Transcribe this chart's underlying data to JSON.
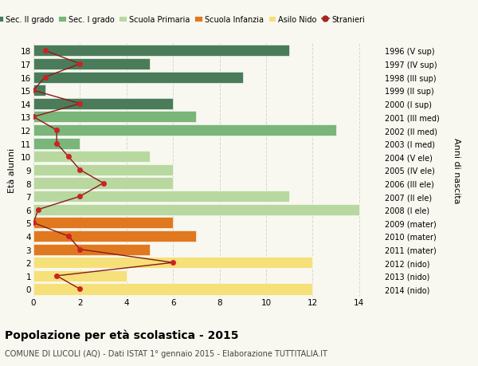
{
  "ages": [
    18,
    17,
    16,
    15,
    14,
    13,
    12,
    11,
    10,
    9,
    8,
    7,
    6,
    5,
    4,
    3,
    2,
    1,
    0
  ],
  "right_labels": [
    "1996 (V sup)",
    "1997 (IV sup)",
    "1998 (III sup)",
    "1999 (II sup)",
    "2000 (I sup)",
    "2001 (III med)",
    "2002 (II med)",
    "2003 (I med)",
    "2004 (V ele)",
    "2005 (IV ele)",
    "2006 (III ele)",
    "2007 (II ele)",
    "2008 (I ele)",
    "2009 (mater)",
    "2010 (mater)",
    "2011 (mater)",
    "2012 (nido)",
    "2013 (nido)",
    "2014 (nido)"
  ],
  "bar_values": [
    11,
    5,
    9,
    0.5,
    6,
    7,
    13,
    2,
    5,
    6,
    6,
    11,
    14,
    6,
    7,
    5,
    12,
    4,
    12
  ],
  "bar_colors": [
    "#4a7c59",
    "#4a7c59",
    "#4a7c59",
    "#4a7c59",
    "#4a7c59",
    "#7ab57a",
    "#7ab57a",
    "#7ab57a",
    "#b8d8a0",
    "#b8d8a0",
    "#b8d8a0",
    "#b8d8a0",
    "#b8d8a0",
    "#e07820",
    "#e07820",
    "#e07820",
    "#f5e07a",
    "#f5e07a",
    "#f5e07a"
  ],
  "stranieri_values": [
    0.5,
    2,
    0.5,
    0,
    2,
    0,
    1,
    1,
    1.5,
    2,
    3,
    2,
    0.2,
    0,
    1.5,
    2,
    6,
    1,
    2
  ],
  "legend_labels": [
    "Sec. II grado",
    "Sec. I grado",
    "Scuola Primaria",
    "Scuola Infanzia",
    "Asilo Nido",
    "Stranieri"
  ],
  "legend_colors": [
    "#4a7c59",
    "#7ab57a",
    "#b8d8a0",
    "#e07820",
    "#f5e07a",
    "#aa2222"
  ],
  "ylabel": "Età alunni",
  "right_ylabel": "Anni di nascita",
  "title": "Popolazione per età scolastica - 2015",
  "subtitle": "COMUNE DI LUCOLI (AQ) - Dati ISTAT 1° gennaio 2015 - Elaborazione TUTTITALIA.IT",
  "xlim": [
    0,
    15
  ],
  "xticks": [
    0,
    2,
    4,
    6,
    8,
    10,
    12,
    14
  ],
  "background_color": "#f8f8f0",
  "grid_color": "#d8d8c8",
  "bar_edge_color": "white"
}
